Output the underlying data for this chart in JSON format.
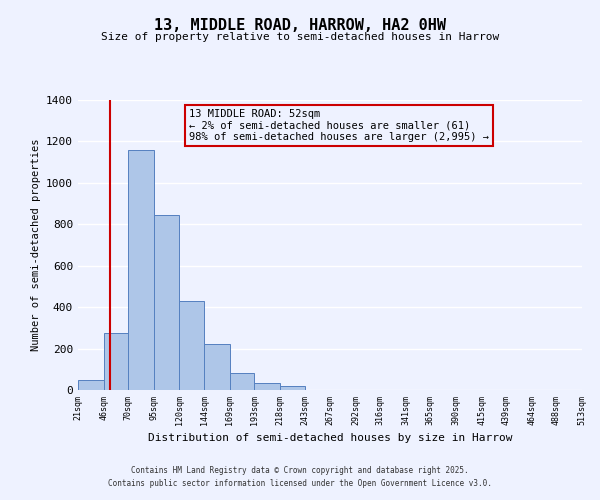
{
  "title": "13, MIDDLE ROAD, HARROW, HA2 0HW",
  "subtitle": "Size of property relative to semi-detached houses in Harrow",
  "xlabel": "Distribution of semi-detached houses by size in Harrow",
  "ylabel": "Number of semi-detached properties",
  "bin_edges": [
    21,
    46,
    70,
    95,
    120,
    144,
    169,
    193,
    218,
    243,
    267,
    292,
    316,
    341,
    365,
    390,
    415,
    439,
    464,
    488,
    513
  ],
  "bar_heights": [
    50,
    275,
    1160,
    845,
    430,
    220,
    80,
    35,
    20,
    0,
    0,
    0,
    0,
    0,
    0,
    0,
    0,
    0,
    0,
    0
  ],
  "bar_color": "#aec6e8",
  "bar_edge_color": "#5580c0",
  "property_line_x": 52,
  "property_line_color": "#cc0000",
  "annotation_title": "13 MIDDLE ROAD: 52sqm",
  "annotation_line1": "← 2% of semi-detached houses are smaller (61)",
  "annotation_line2": "98% of semi-detached houses are larger (2,995) →",
  "annotation_box_color": "#cc0000",
  "ylim": [
    0,
    1400
  ],
  "yticks": [
    0,
    200,
    400,
    600,
    800,
    1000,
    1200,
    1400
  ],
  "background_color": "#eef2ff",
  "footer_line1": "Contains HM Land Registry data © Crown copyright and database right 2025.",
  "footer_line2": "Contains public sector information licensed under the Open Government Licence v3.0."
}
